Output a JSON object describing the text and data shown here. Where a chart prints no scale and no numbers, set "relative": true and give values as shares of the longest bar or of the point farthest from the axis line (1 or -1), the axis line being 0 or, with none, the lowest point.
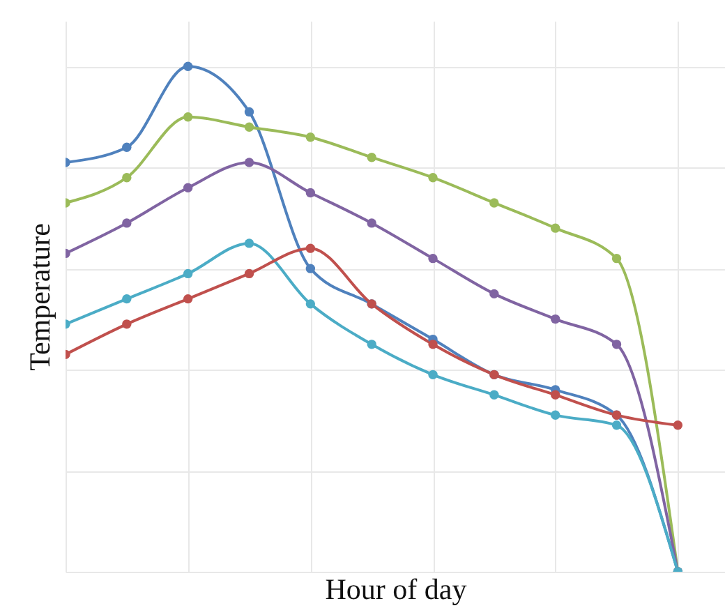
{
  "chart_data": {
    "type": "line",
    "relative": true,
    "xlabel": "Hour of day",
    "ylabel": "Temperature",
    "grid": true,
    "marker": "circle",
    "categories": [
      null,
      null,
      null,
      null,
      null,
      null,
      null,
      null,
      null,
      null,
      null
    ],
    "series": [
      {
        "color": "#4f81bd",
        "values": [
          0.81,
          0.84,
          1.0,
          0.91,
          0.6,
          0.53,
          0.46,
          0.39,
          0.36,
          0.31,
          0
        ]
      },
      {
        "color": "#9bbb59",
        "values": [
          0.73,
          0.78,
          0.9,
          0.88,
          0.86,
          0.82,
          0.78,
          0.73,
          0.68,
          0.62,
          0
        ]
      },
      {
        "color": "#8064a2",
        "values": [
          0.63,
          0.69,
          0.76,
          0.81,
          0.75,
          0.69,
          0.62,
          0.55,
          0.5,
          0.45,
          0
        ]
      },
      {
        "color": "#4bacc6",
        "values": [
          0.49,
          0.54,
          0.59,
          0.65,
          0.53,
          0.45,
          0.39,
          0.35,
          0.31,
          0.29,
          0
        ]
      },
      {
        "color": "#c0504d",
        "values": [
          0.43,
          0.49,
          0.54,
          0.59,
          0.64,
          0.53,
          0.45,
          0.39,
          0.35,
          0.31,
          0.29
        ]
      }
    ]
  }
}
